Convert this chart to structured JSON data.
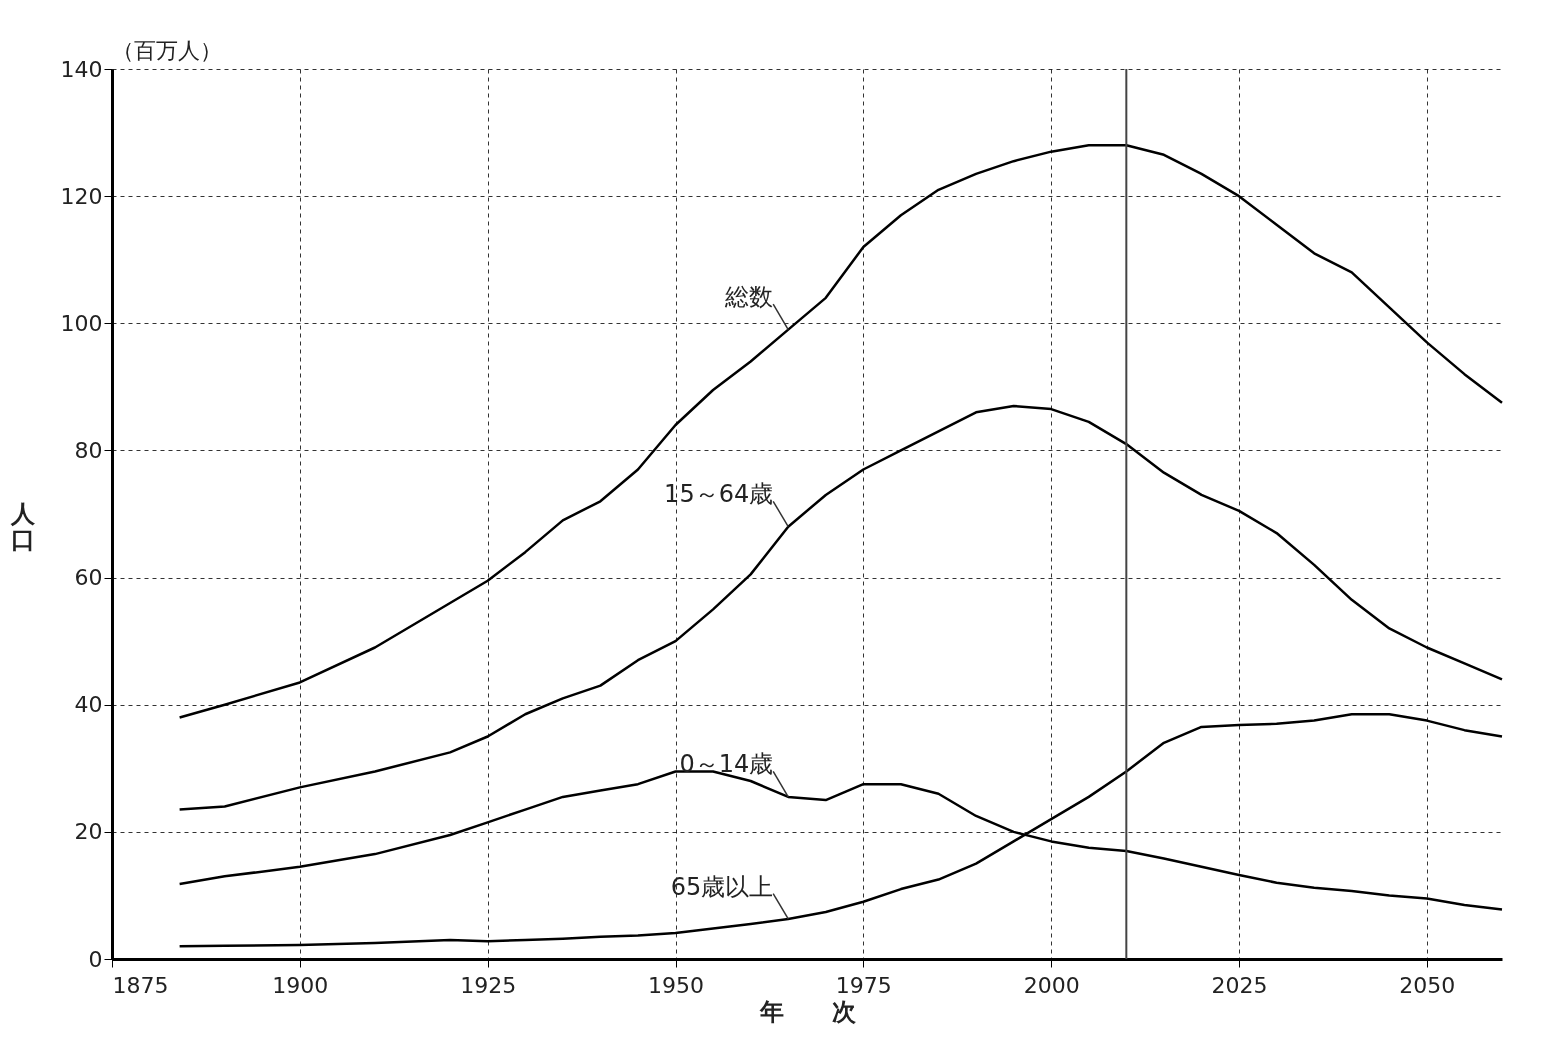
{
  "chart_data": {
    "type": "line",
    "xlabel": "年　　次",
    "ylabel": "人口",
    "annotations": [
      "（百万人）"
    ],
    "x": [
      1884,
      1890,
      1900,
      1910,
      1920,
      1925,
      1930,
      1935,
      1940,
      1945,
      1950,
      1955,
      1960,
      1965,
      1970,
      1975,
      1980,
      1985,
      1990,
      1995,
      2000,
      2005,
      2010,
      2015,
      2020,
      2025,
      2030,
      2035,
      2040,
      2045,
      2050,
      2055,
      2060
    ],
    "series": [
      {
        "name": "総数",
        "color": "#000000",
        "values": [
          38,
          40,
          43.5,
          49,
          56,
          59.5,
          64,
          69,
          72,
          77,
          84,
          89.5,
          94,
          99,
          104,
          112,
          117,
          121,
          123.5,
          125.5,
          127,
          128,
          128,
          126.5,
          123.5,
          120,
          115.5,
          111,
          108,
          102.5,
          97,
          92,
          87.5
        ]
      },
      {
        "name": "15～64歳",
        "color": "#000000",
        "values": [
          23.5,
          24,
          27,
          29.5,
          32.5,
          35,
          38.5,
          41,
          43,
          47,
          50,
          55,
          60.5,
          68,
          73,
          77,
          80,
          83,
          86,
          87,
          86.5,
          84.5,
          81,
          76.5,
          73,
          70.5,
          67,
          62,
          56.5,
          52,
          49,
          46.5,
          44
        ]
      },
      {
        "name": "0～14歳",
        "color": "#000000",
        "values": [
          11.8,
          13,
          14.5,
          16.5,
          19.5,
          21.5,
          23.5,
          25.5,
          26.5,
          27.5,
          29.5,
          29.5,
          28,
          25.5,
          25,
          27.5,
          27.5,
          26,
          22.5,
          20,
          18.5,
          17.5,
          17,
          15.8,
          14.5,
          13.2,
          12,
          11.2,
          10.7,
          10,
          9.5,
          8.5,
          7.8
        ]
      },
      {
        "name": "65歳以上",
        "color": "#000000",
        "values": [
          2,
          2.1,
          2.2,
          2.5,
          3,
          2.8,
          3,
          3.2,
          3.5,
          3.7,
          4.1,
          4.8,
          5.5,
          6.3,
          7.4,
          9,
          11,
          12.5,
          15,
          18.5,
          22,
          25.5,
          29.5,
          34,
          36.5,
          36.8,
          37,
          37.5,
          38.5,
          38.5,
          37.5,
          36,
          35
        ]
      }
    ],
    "xlim": [
      1875,
      2060
    ],
    "xticks": [
      1875,
      1900,
      1925,
      1950,
      1975,
      2000,
      2025,
      2050
    ],
    "ylim": [
      0,
      140
    ],
    "yticks": [
      0,
      20,
      40,
      60,
      80,
      100,
      120,
      140
    ],
    "ref_lines": [
      {
        "axis": "x",
        "value": 2010,
        "color": "#444444",
        "line_style": "solid"
      }
    ],
    "grid": true,
    "marker": "none",
    "line_style": "solid"
  }
}
